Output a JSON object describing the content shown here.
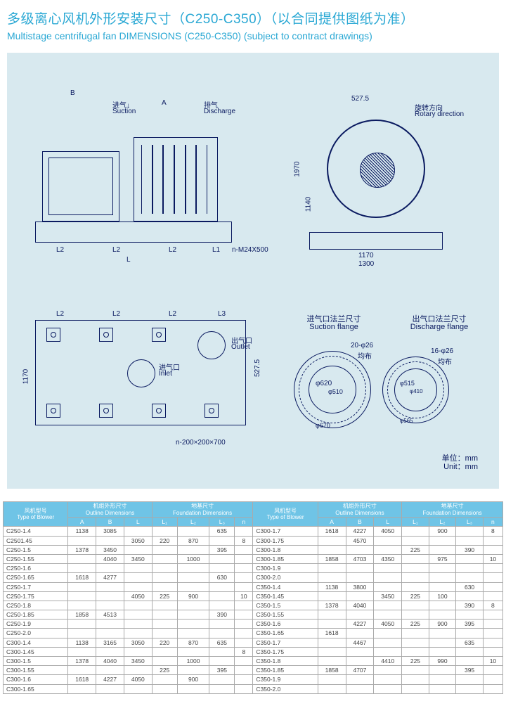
{
  "title_cn": "多级离心风机外形安装尺寸（C250-C350）（以合同提供图纸为准）",
  "title_en": "Multistage centrifugal fan DIMENSIONS (C250-C350) (subject to contract drawings)",
  "diagram": {
    "suction_label_cn": "进气",
    "suction_label_en": "Suction",
    "discharge_label_cn": "排气",
    "discharge_label_en": "Discharge",
    "rotary_cn": "旋转方向",
    "rotary_en": "Rotary direction",
    "outlet_cn": "出气口",
    "outlet_en": "Outlet",
    "inlet_cn": "进气口",
    "inlet_en": "Inlet",
    "suction_flange_cn": "进气口法兰尺寸",
    "suction_flange_en": "Suction flange",
    "discharge_flange_cn": "出气口法兰尺寸",
    "discharge_flange_en": "Discharge flange",
    "dim_B": "B",
    "dim_A": "A",
    "dim_L": "L",
    "dim_L1": "L1",
    "dim_L2": "L2",
    "dim_L3": "L3",
    "dim_527_5": "527.5",
    "dim_1970": "1970",
    "dim_1140": "1140",
    "dim_1170_a": "1170",
    "dim_1300": "1300",
    "dim_1170_b": "1170",
    "bolt_note": "n-M24X500",
    "rect_note": "n-200×200×700",
    "sflange_holes": "20-φ26",
    "sflange_even": "均布",
    "sflange_d1": "φ620",
    "sflange_d2": "φ510",
    "sflange_d3": "φ670",
    "dflange_holes": "16-φ26",
    "dflange_even": "均布",
    "dflange_d1": "φ515",
    "dflange_d2": "φ410",
    "dflange_d3": "φ565",
    "unit_cn": "单位：mm",
    "unit_en": "Unit：mm"
  },
  "table": {
    "hdr_model_cn": "风机型号",
    "hdr_model_en": "Type of Blower",
    "hdr_outline_cn": "机组外形尺寸",
    "hdr_outline_en": "Outline Dimensions",
    "hdr_found_cn": "地基尺寸",
    "hdr_found_en": "Foundation Dimensions",
    "cols": [
      "A",
      "B",
      "L",
      "L₁",
      "L₂",
      "L₃",
      "n",
      "A",
      "B",
      "L",
      "L₁",
      "L₂",
      "L₃",
      "n"
    ],
    "rows_left": [
      [
        "C250-1.4",
        "1138",
        "3085",
        "",
        "",
        "",
        "635",
        "",
        "C300-1.7",
        "1618",
        "4227",
        "4050",
        "",
        "900",
        "",
        "8"
      ],
      [
        "C2501.45",
        "",
        "",
        "3050",
        "220",
        "870",
        "",
        "8",
        "C300-1.75",
        "",
        "4570",
        "",
        "",
        "",
        "",
        ""
      ],
      [
        "C250-1.5",
        "1378",
        "3450",
        "",
        "",
        "",
        "395",
        "",
        "C300-1.8",
        "",
        "",
        "",
        "225",
        "",
        "390",
        ""
      ],
      [
        "C250-1.55",
        "",
        "4040",
        "3450",
        "",
        "1000",
        "",
        "",
        "C300-1.85",
        "1858",
        "4703",
        "4350",
        "",
        "975",
        "",
        "10"
      ],
      [
        "C250-1.6",
        "",
        "",
        "",
        "",
        "",
        "",
        "",
        "C300-1.9",
        "",
        "",
        "",
        "",
        "",
        "",
        ""
      ],
      [
        "C250-1.65",
        "1618",
        "4277",
        "",
        "",
        "",
        "630",
        "",
        "C300-2.0",
        "",
        "",
        "",
        "",
        "",
        "",
        ""
      ],
      [
        "C250-1.7",
        "",
        "",
        "",
        "",
        "",
        "",
        "",
        "C350-1.4",
        "1138",
        "3800",
        "",
        "",
        "",
        "630",
        ""
      ],
      [
        "C250-1.75",
        "",
        "",
        "4050",
        "225",
        "900",
        "",
        "10",
        "C350-1.45",
        "",
        "",
        "3450",
        "225",
        "100",
        "",
        ""
      ],
      [
        "C250-1.8",
        "",
        "",
        "",
        "",
        "",
        "",
        "",
        "C350-1.5",
        "1378",
        "4040",
        "",
        "",
        "",
        "390",
        "8"
      ],
      [
        "C250-1.85",
        "1858",
        "4513",
        "",
        "",
        "",
        "390",
        "",
        "C350-1.55",
        "",
        "",
        "",
        "",
        "",
        "",
        ""
      ],
      [
        "C250-1.9",
        "",
        "",
        "",
        "",
        "",
        "",
        "",
        "C350-1.6",
        "",
        "4227",
        "4050",
        "225",
        "900",
        "395",
        ""
      ],
      [
        "C250-2.0",
        "",
        "",
        "",
        "",
        "",
        "",
        "",
        "C350-1.65",
        "1618",
        "",
        "",
        "",
        "",
        "",
        ""
      ],
      [
        "C300-1.4",
        "1138",
        "3165",
        "3050",
        "220",
        "870",
        "635",
        "",
        "C350-1.7",
        "",
        "4467",
        "",
        "",
        "",
        "635",
        ""
      ],
      [
        "C300-1.45",
        "",
        "",
        "",
        "",
        "",
        "",
        "8",
        "C350-1.75",
        "",
        "",
        "",
        "",
        "",
        "",
        ""
      ],
      [
        "C300-1.5",
        "1378",
        "4040",
        "3450",
        "",
        "1000",
        "",
        "",
        "C350-1.8",
        "",
        "",
        "4410",
        "225",
        "990",
        "",
        "10"
      ],
      [
        "C300-1.55",
        "",
        "",
        "",
        "225",
        "",
        "395",
        "",
        "C350-1.85",
        "1858",
        "4707",
        "",
        "",
        "",
        "395",
        ""
      ],
      [
        "C300-1.6",
        "1618",
        "4227",
        "4050",
        "",
        "900",
        "",
        "",
        "C350-1.9",
        "",
        "",
        "",
        "",
        "",
        "",
        ""
      ],
      [
        "C300-1.65",
        "",
        "",
        "",
        "",
        "",
        "",
        "",
        "C350-2.0",
        "",
        "",
        "",
        "",
        "",
        "",
        ""
      ]
    ]
  }
}
